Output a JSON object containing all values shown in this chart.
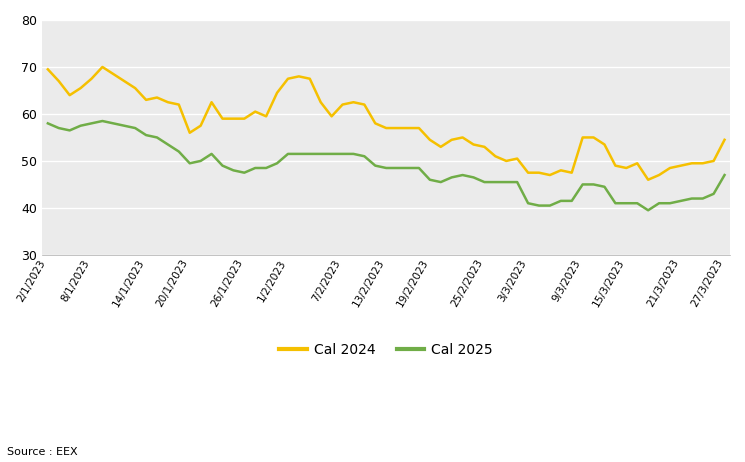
{
  "x_labels": [
    "2/1/2023",
    "8/1/2023",
    "14/1/2023",
    "20/1/2023",
    "26/1/2023",
    "1/2/2023",
    "7/2/2023",
    "13/2/2023",
    "19/2/2023",
    "25/2/2023",
    "3/3/2023",
    "9/3/2023",
    "15/3/2023",
    "21/3/2023",
    "27/3/2023"
  ],
  "cal2024_y": [
    69.5,
    67.0,
    64.0,
    65.5,
    67.5,
    70.0,
    68.5,
    67.0,
    65.5,
    63.0,
    63.5,
    62.5,
    62.0,
    56.0,
    57.5,
    62.5,
    59.0,
    59.0,
    59.0,
    60.5,
    59.5,
    64.5,
    67.5,
    68.0,
    67.5,
    62.5,
    59.5,
    62.0,
    62.5,
    62.0,
    58.0,
    57.0,
    57.0,
    57.0,
    57.0,
    54.5,
    53.0,
    54.5,
    55.0,
    53.5,
    53.0,
    51.0,
    50.0,
    50.5,
    47.5,
    47.5,
    47.0,
    48.0,
    47.5,
    55.0,
    55.0,
    53.5,
    49.0,
    48.5,
    49.5,
    46.0,
    47.0,
    48.5,
    49.0,
    49.5,
    49.5,
    50.0,
    54.5
  ],
  "cal2025_y": [
    58.0,
    57.0,
    56.5,
    57.5,
    58.0,
    58.5,
    58.0,
    57.5,
    57.0,
    55.5,
    55.0,
    53.5,
    52.0,
    49.5,
    50.0,
    51.5,
    49.0,
    48.0,
    47.5,
    48.5,
    48.5,
    49.5,
    51.5,
    51.5,
    51.5,
    51.5,
    51.5,
    51.5,
    51.5,
    51.0,
    49.0,
    48.5,
    48.5,
    48.5,
    48.5,
    46.0,
    45.5,
    46.5,
    47.0,
    46.5,
    45.5,
    45.5,
    45.5,
    45.5,
    41.0,
    40.5,
    40.5,
    41.5,
    41.5,
    45.0,
    45.0,
    44.5,
    41.0,
    41.0,
    41.0,
    39.5,
    41.0,
    41.0,
    41.5,
    42.0,
    42.0,
    43.0,
    47.0
  ],
  "cal2024_color": "#F5C000",
  "cal2025_color": "#70AD47",
  "background_color": "#EBEBEB",
  "fig_background": "#FFFFFF",
  "ylim": [
    30,
    80
  ],
  "yticks": [
    30,
    40,
    50,
    60,
    70,
    80
  ],
  "legend_cal2024": "Cal 2024",
  "legend_cal2025": "Cal 2025",
  "source_text": "Source : EEX",
  "line_width": 1.8
}
